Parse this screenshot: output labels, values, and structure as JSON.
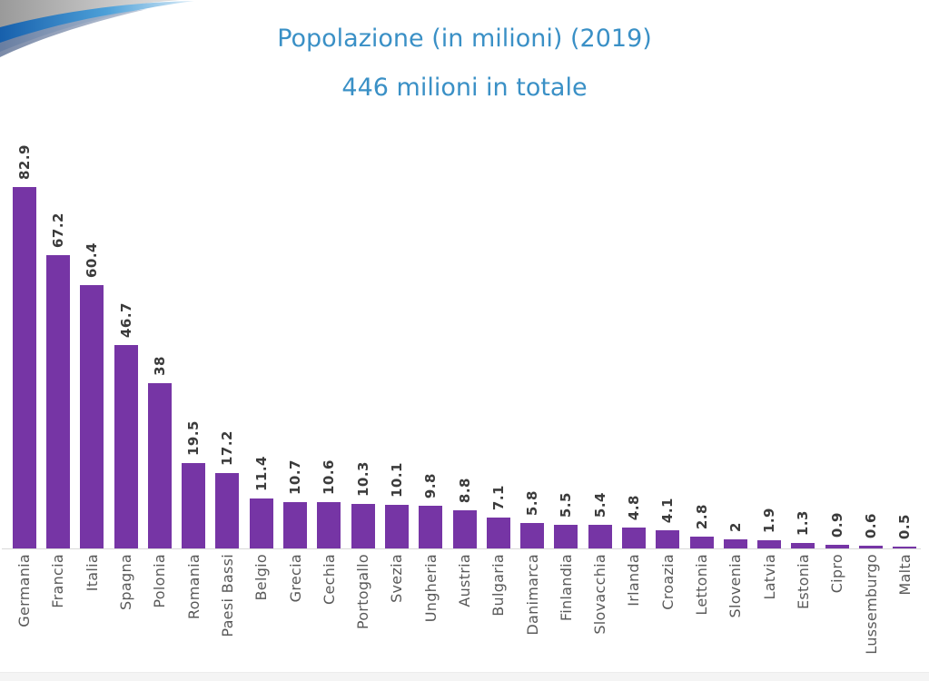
{
  "header": {
    "title": "Popolazione (in milioni) (2019)",
    "subtitle": "446 milioni in totale",
    "title_color": "#3a90c6"
  },
  "decoration": {
    "name": "corner-swoosh",
    "gray_dark": "#9a9a9a",
    "gray_light": "#e2e2e2",
    "blue_dark": "#1760ac",
    "blue_mid": "#4da0d8",
    "blue_light": "#dcedf8",
    "slate_dark": "#6f80a0",
    "slate_light": "#bac5d7"
  },
  "chart_data": {
    "type": "bar",
    "title": "Popolazione (in milioni) (2019)",
    "subtitle": "446 milioni in totale",
    "categories": [
      "Germania",
      "Francia",
      "Italia",
      "Spagna",
      "Polonia",
      "Romania",
      "Paesi Bassi",
      "Belgio",
      "Grecia",
      "Cechia",
      "Portogallo",
      "Svezia",
      "Ungheria",
      "Austria",
      "Bulgaria",
      "Danimarca",
      "Finlandia",
      "Slovacchia",
      "Irlanda",
      "Croazia",
      "Lettonia",
      "Slovenia",
      "Latvia",
      "Estonia",
      "Cipro",
      "Lussemburgo",
      "Malta"
    ],
    "values": [
      82.9,
      67.2,
      60.4,
      46.7,
      38,
      19.5,
      17.2,
      11.4,
      10.7,
      10.6,
      10.3,
      10.1,
      9.8,
      8.8,
      7.1,
      5.8,
      5.5,
      5.4,
      4.8,
      4.1,
      2.8,
      2,
      1.9,
      1.3,
      0.9,
      0.6,
      0.5
    ],
    "xlabel": "",
    "ylabel": "",
    "ylim": [
      0,
      85
    ],
    "grid": false,
    "legend": false,
    "value_labels_rotated": true,
    "category_labels_rotated": true,
    "bar_color": "#7635a5",
    "value_label_color": "#3b3b3b",
    "category_label_color": "#595959",
    "axis_line_color": "#d9d9d9"
  }
}
